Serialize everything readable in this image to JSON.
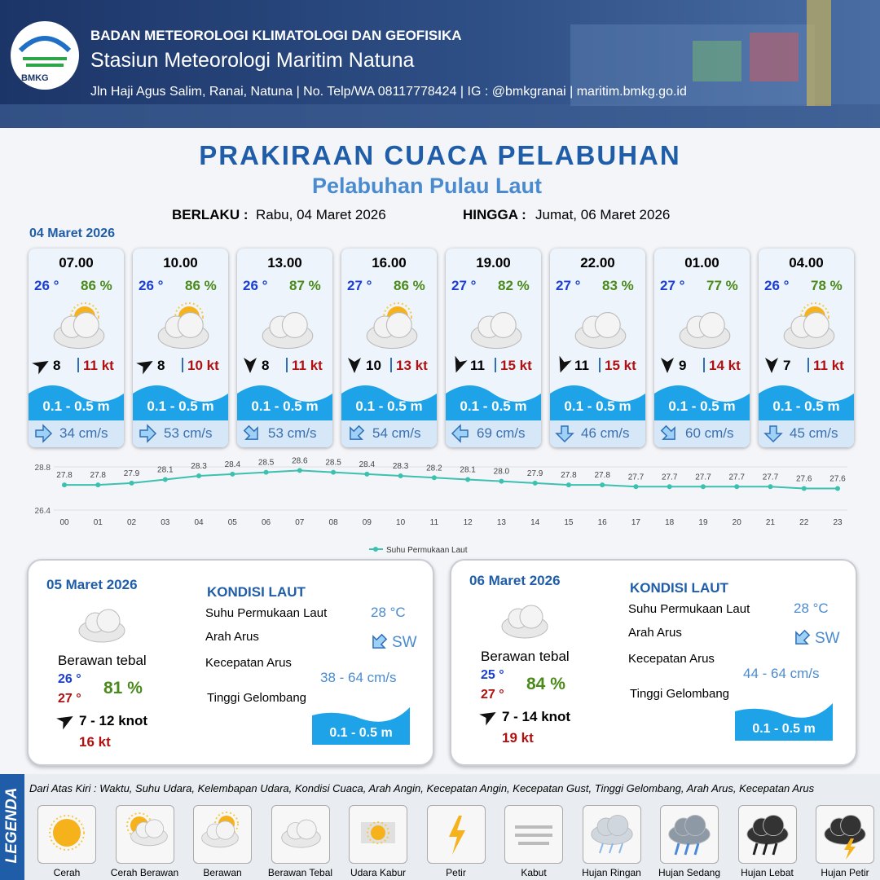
{
  "header": {
    "org": "BADAN METEOROLOGI KLIMATOLOGI DAN GEOFISIKA",
    "station": "Stasiun Meteorologi Maritim Natuna",
    "contact": "Jln Haji Agus Salim, Ranai, Natuna  | No. Telp/WA 08117778424 | IG : @bmkgranai | maritim.bmkg.go.id",
    "logo": "BMKG"
  },
  "title": "PRAKIRAAN CUACA PELABUHAN",
  "subtitle": "Pelabuhan Pulau Laut",
  "validity": {
    "from_label": "BERLAKU :",
    "from": "Rabu, 04 Maret 2026",
    "to_label": "HINGGA :",
    "to": "Jumat, 06 Maret 2026"
  },
  "day1": {
    "date": "04 Maret 2026",
    "slots": [
      {
        "time": "07.00",
        "temp": "26 °",
        "humidity": "86 %",
        "wind": 8,
        "gust": "11 kt",
        "wave": "0.1 - 0.5 m",
        "current": "34 cm/s"
      },
      {
        "time": "10.00",
        "temp": "26 °",
        "humidity": "86 %",
        "wind": 8,
        "gust": "10 kt",
        "wave": "0.1 - 0.5 m",
        "current": "53 cm/s"
      },
      {
        "time": "13.00",
        "temp": "26 °",
        "humidity": "87 %",
        "wind": 8,
        "gust": "11 kt",
        "wave": "0.1 - 0.5 m",
        "current": "53 cm/s"
      },
      {
        "time": "16.00",
        "temp": "27 °",
        "humidity": "86 %",
        "wind": 10,
        "gust": "13 kt",
        "wave": "0.1 - 0.5 m",
        "current": "54 cm/s"
      },
      {
        "time": "19.00",
        "temp": "27 °",
        "humidity": "82 %",
        "wind": 11,
        "gust": "15 kt",
        "wave": "0.1 - 0.5 m",
        "current": "69 cm/s"
      },
      {
        "time": "22.00",
        "temp": "27 °",
        "humidity": "83 %",
        "wind": 11,
        "gust": "15 kt",
        "wave": "0.1 - 0.5 m",
        "current": "46 cm/s"
      },
      {
        "time": "01.00",
        "temp": "27 °",
        "humidity": "77 %",
        "wind": 9,
        "gust": "14 kt",
        "wave": "0.1 - 0.5 m",
        "current": "60 cm/s"
      },
      {
        "time": "04.00",
        "temp": "26 °",
        "humidity": "78 %",
        "wind": 7,
        "gust": "11 kt",
        "wave": "0.1 - 0.5 m",
        "current": "45 cm/s"
      }
    ]
  },
  "sst_chart": {
    "type": "line",
    "legend": "Suhu Permukaan Laut",
    "color": "#3cc0b0",
    "categories": [
      "00",
      "01",
      "02",
      "03",
      "04",
      "05",
      "06",
      "07",
      "08",
      "09",
      "10",
      "11",
      "12",
      "13",
      "14",
      "15",
      "16",
      "17",
      "18",
      "19",
      "20",
      "21",
      "22",
      "23"
    ],
    "values": [
      27.8,
      27.8,
      27.9,
      28.1,
      28.3,
      28.4,
      28.5,
      28.6,
      28.5,
      28.4,
      28.3,
      28.2,
      28.1,
      28.0,
      27.9,
      27.8,
      27.8,
      27.7,
      27.7,
      27.7,
      27.7,
      27.7,
      27.6,
      27.6
    ],
    "value_labels": [
      "27.8",
      "27.8",
      "27.9",
      "28.1",
      "28.3",
      "28.4",
      "28.5",
      "28.6",
      "28.5",
      "28.4",
      "28.3",
      "28.2",
      "28.1",
      "28.0",
      "27.9",
      "27.8",
      "27.8",
      "27.7",
      "27.7",
      "27.7",
      "27.7",
      "27.7",
      "27.6",
      "27.6"
    ],
    "ylim": [
      26.4,
      28.8
    ],
    "yticks": [
      26.4,
      28.8
    ]
  },
  "days": [
    {
      "date": "05 Maret 2026",
      "condition": "Berawan tebal",
      "temp_min": "26 °",
      "temp_max": "27 °",
      "humidity": "81 %",
      "wind": "7  - 12 knot",
      "gust": "16 kt",
      "sea_title": "KONDISI LAUT",
      "sst_label": "Suhu Permukaan Laut",
      "sst": "28 °C",
      "dir_label": "Arah Arus",
      "dir": "SW",
      "speed_label": "Kecepatan Arus",
      "speed": "38 - 64 cm/s",
      "wave_label": "Tinggi Gelombang",
      "wave": "0.1 - 0.5 m"
    },
    {
      "date": "06 Maret 2026",
      "condition": "Berawan tebal",
      "temp_min": "25 °",
      "temp_max": "27 °",
      "humidity": "84 %",
      "wind": "7  - 14 knot",
      "gust": "19 kt",
      "sea_title": "KONDISI LAUT",
      "sst_label": "Suhu Permukaan Laut",
      "sst": "28 °C",
      "dir_label": "Arah Arus",
      "dir": "SW",
      "speed_label": "Kecepatan Arus",
      "speed": "44 - 64 cm/s",
      "wave_label": "Tinggi Gelombang",
      "wave": "0.1 - 0.5 m"
    }
  ],
  "legend": {
    "title": "LEGENDA",
    "description": "Dari Atas Kiri : Waktu, Suhu Udara, Kelembapan Udara, Kondisi Cuaca, Arah Angin, Kecepatan Angin, Kecepatan Gust, Tinggi Gelombang, Arah Arus, Kecepatan Arus",
    "items": [
      "Cerah",
      "Cerah Berawan",
      "Berawan",
      "Berawan Tebal",
      "Udara Kabur",
      "Petir",
      "Kabut",
      "Hujan Ringan",
      "Hujan Sedang",
      "Hujan Lebat",
      "Hujan Petir"
    ]
  }
}
